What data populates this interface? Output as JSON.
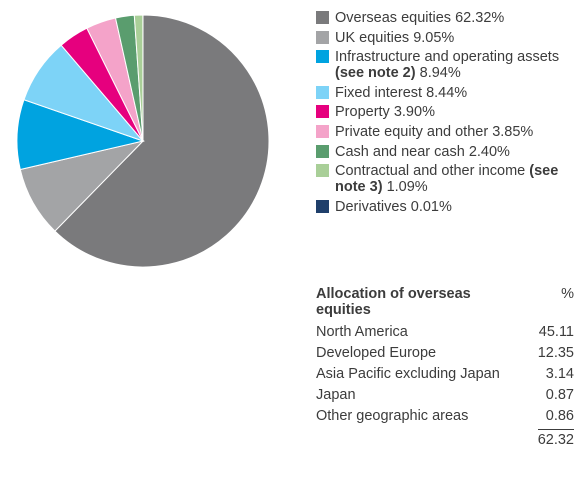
{
  "chart_data": {
    "type": "pie",
    "slices": [
      {
        "label": "Overseas equities",
        "value": 62.32,
        "display": "62.32%",
        "color": "#7a7a7c"
      },
      {
        "label": "UK equities",
        "value": 9.05,
        "display": "9.05%",
        "color": "#a3a4a6"
      },
      {
        "label": "Infrastructure and operating assets",
        "note": "(see note 2)",
        "value": 8.94,
        "display": "8.94%",
        "color": "#00a3e0"
      },
      {
        "label": "Fixed interest",
        "value": 8.44,
        "display": "8.44%",
        "color": "#7dd3f7"
      },
      {
        "label": "Property",
        "value": 3.9,
        "display": "3.90%",
        "color": "#e6007e"
      },
      {
        "label": "Private equity and other",
        "value": 3.85,
        "display": "3.85%",
        "color": "#f4a3c9"
      },
      {
        "label": "Cash and near cash",
        "value": 2.4,
        "display": "2.40%",
        "color": "#5a9d6e"
      },
      {
        "label": "Contractual and other income",
        "note": "(see note 3)",
        "value": 1.09,
        "display": "1.09%",
        "color": "#a9cf98"
      },
      {
        "label": "Derivatives",
        "value": 0.01,
        "display": "0.01%",
        "color": "#1f3f6b"
      }
    ]
  },
  "allocation": {
    "title": "Allocation of overseas equities",
    "unit": "%",
    "rows": [
      {
        "region": "North America",
        "value": "45.11"
      },
      {
        "region": "Developed Europe",
        "value": "12.35"
      },
      {
        "region": "Asia Pacific excluding Japan",
        "value": "3.14"
      },
      {
        "region": "Japan",
        "value": "0.87"
      },
      {
        "region": "Other geographic areas",
        "value": "0.86"
      }
    ],
    "total": "62.32"
  }
}
